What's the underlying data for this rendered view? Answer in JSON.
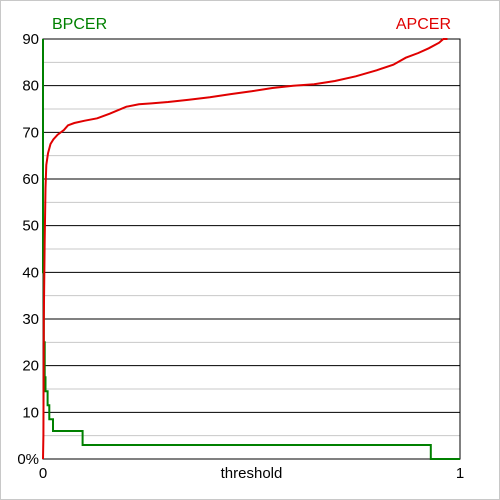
{
  "chart_data": {
    "type": "line",
    "xlabel": "threshold",
    "ylabel": "",
    "xlim": [
      0,
      1
    ],
    "ylim": [
      0,
      90
    ],
    "x_ticks": [
      0,
      1
    ],
    "x_tick_labels": [
      "0",
      "1"
    ],
    "y_ticks": [
      0,
      10,
      20,
      30,
      40,
      50,
      60,
      70,
      80,
      90
    ],
    "y_tick_labels": [
      "0%",
      "10",
      "20",
      "30",
      "40",
      "50",
      "60",
      "70",
      "80",
      "90"
    ],
    "major_grid_step": 10,
    "minor_grid_step": 5,
    "grid": true,
    "series": [
      {
        "name": "BPCER",
        "color": "#008000",
        "label_position": "top-left",
        "x": [
          0.0,
          0.0,
          0.002,
          0.002,
          0.004,
          0.004,
          0.006,
          0.006,
          0.011,
          0.011,
          0.015,
          0.015,
          0.024,
          0.024,
          0.03,
          0.03,
          0.095,
          0.095,
          0.93,
          0.93,
          1.0
        ],
        "y": [
          90.0,
          40.0,
          40.0,
          25.0,
          25.0,
          17.5,
          17.5,
          14.5,
          14.5,
          11.5,
          11.5,
          8.5,
          8.5,
          6.0,
          6.0,
          6.0,
          6.0,
          3.0,
          3.0,
          0.0,
          0.0
        ]
      },
      {
        "name": "APCER",
        "color": "#e00000",
        "label_position": "top-right",
        "x": [
          0.0,
          0.001,
          0.002,
          0.004,
          0.006,
          0.008,
          0.012,
          0.018,
          0.025,
          0.035,
          0.05,
          0.06,
          0.075,
          0.1,
          0.13,
          0.16,
          0.2,
          0.23,
          0.26,
          0.3,
          0.35,
          0.4,
          0.45,
          0.5,
          0.55,
          0.6,
          0.65,
          0.7,
          0.75,
          0.8,
          0.84,
          0.87,
          0.9,
          0.925,
          0.95,
          0.96,
          0.97
        ],
        "y": [
          0.0,
          5.0,
          30.0,
          47.0,
          58.0,
          63.0,
          65.5,
          67.5,
          68.5,
          69.5,
          70.5,
          71.5,
          72.0,
          72.5,
          73.0,
          74.0,
          75.5,
          76.0,
          76.2,
          76.5,
          77.0,
          77.5,
          78.2,
          78.8,
          79.5,
          80.0,
          80.3,
          81.0,
          82.0,
          83.3,
          84.5,
          86.0,
          87.0,
          88.0,
          89.2,
          90.0,
          90.0
        ]
      }
    ]
  }
}
